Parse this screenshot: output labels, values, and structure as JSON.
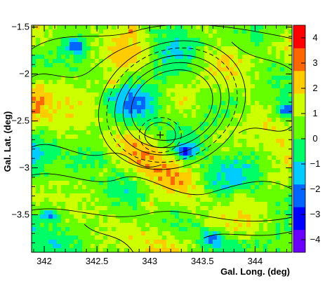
{
  "chart_data": {
    "type": "heatmap",
    "title": "",
    "xlabel": "Gal. Long. (deg)",
    "ylabel": "Gal. Lat. (deg)",
    "xlim": [
      341.88,
      344.35
    ],
    "ylim": [
      -3.9,
      -1.48
    ],
    "x_ticks": [
      342,
      342.5,
      343,
      343.5,
      344
    ],
    "x_tick_labels": [
      "342",
      "342.5",
      "343",
      "343.5",
      "344"
    ],
    "y_ticks": [
      -3.5,
      -3,
      -2.5,
      -2,
      -1.5
    ],
    "y_tick_labels": [
      "−3.5",
      "−3",
      "−2.5",
      "−2",
      "−1.5"
    ],
    "color_scale": {
      "range": [
        -4.5,
        4.5
      ],
      "ticks": [
        -4,
        -3,
        -2,
        -1,
        0,
        1,
        2,
        3,
        4
      ],
      "tick_labels": [
        "−4",
        "−3",
        "−2",
        "−1",
        "0",
        "1",
        "2",
        "3",
        "4"
      ],
      "palette": [
        "#6a00ff",
        "#0000ff",
        "#0066ff",
        "#00ccff",
        "#00ff66",
        "#66ff00",
        "#ccff00",
        "#ffcc00",
        "#ff6600",
        "#ff0000"
      ]
    },
    "marker": {
      "symbol": "cross",
      "x": 343.1,
      "y": -2.65
    },
    "features": [
      {
        "kind": "blue-spot",
        "x": 343.35,
        "y": -2.83,
        "value": -3
      },
      {
        "kind": "blue-spot",
        "x": 342.3,
        "y": -1.7,
        "value": -2
      },
      {
        "kind": "blue-spot",
        "x": 344.3,
        "y": -2.38,
        "value": -2.5
      },
      {
        "kind": "blue-spot",
        "x": 343.6,
        "y": -3.75,
        "value": -2
      },
      {
        "kind": "blue-spot",
        "x": 342.05,
        "y": -3.5,
        "value": -1.8
      },
      {
        "kind": "red-spot",
        "x": 342.65,
        "y": -2.1,
        "value": 2.5
      },
      {
        "kind": "red-spot",
        "x": 342.85,
        "y": -1.55,
        "value": 2.3
      },
      {
        "kind": "red-spot",
        "x": 343.0,
        "y": -3.4,
        "value": 2.2
      },
      {
        "kind": "red-spot",
        "x": 343.85,
        "y": -3.3,
        "value": 2
      },
      {
        "kind": "red-spot",
        "x": 342.55,
        "y": -3.05,
        "value": 1.8
      }
    ]
  }
}
